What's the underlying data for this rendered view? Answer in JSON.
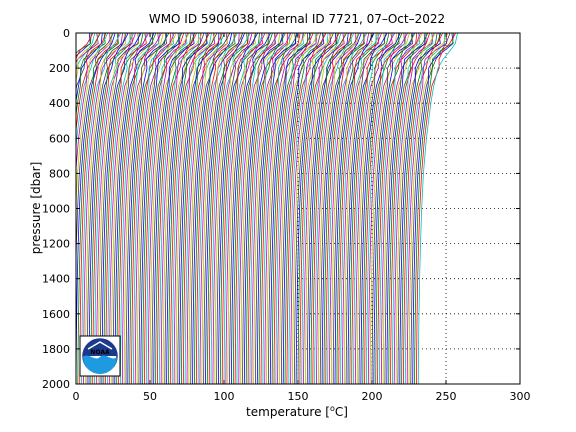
{
  "chart_data": {
    "type": "line",
    "title": "WMO ID 5906038, internal ID 7721, 07–Oct–2022",
    "xlabel": "temperature [°C]",
    "xlabel_text": "temperature [",
    "xlabel_unit": "C]",
    "xlabel_degree": "o",
    "ylabel": "pressure [dbar]",
    "xlim": [
      0,
      300
    ],
    "ylim": [
      2000,
      0
    ],
    "y_reversed": true,
    "grid": "dotted, right half",
    "x_ticks": [
      "0",
      "50",
      "100",
      "150",
      "200",
      "250",
      "300"
    ],
    "y_ticks": [
      "0",
      "200",
      "400",
      "600",
      "800",
      "1000",
      "1200",
      "1400",
      "1600",
      "1800",
      "2000"
    ],
    "series_description": "waterfall of profiles, each offset ~1.25 °C",
    "profile_count": 200,
    "profile_offset": 1.25,
    "representative_profile": {
      "pressure": [
        0,
        60,
        100,
        150,
        200,
        300,
        400,
        600,
        800,
        1000,
        1200,
        1400,
        1600,
        1800,
        2000
      ],
      "temperature": [
        29.0,
        27.5,
        22.0,
        17.0,
        15.5,
        13.0,
        11.0,
        8.0,
        6.0,
        4.8,
        4.0,
        3.4,
        3.0,
        2.7,
        2.5
      ]
    },
    "colors": [
      "#0000ff",
      "#008000",
      "#ff0000",
      "#00bfbf",
      "#bf00bf",
      "#bfbf00",
      "#404040"
    ]
  },
  "logo": {
    "text": "NOAA"
  }
}
